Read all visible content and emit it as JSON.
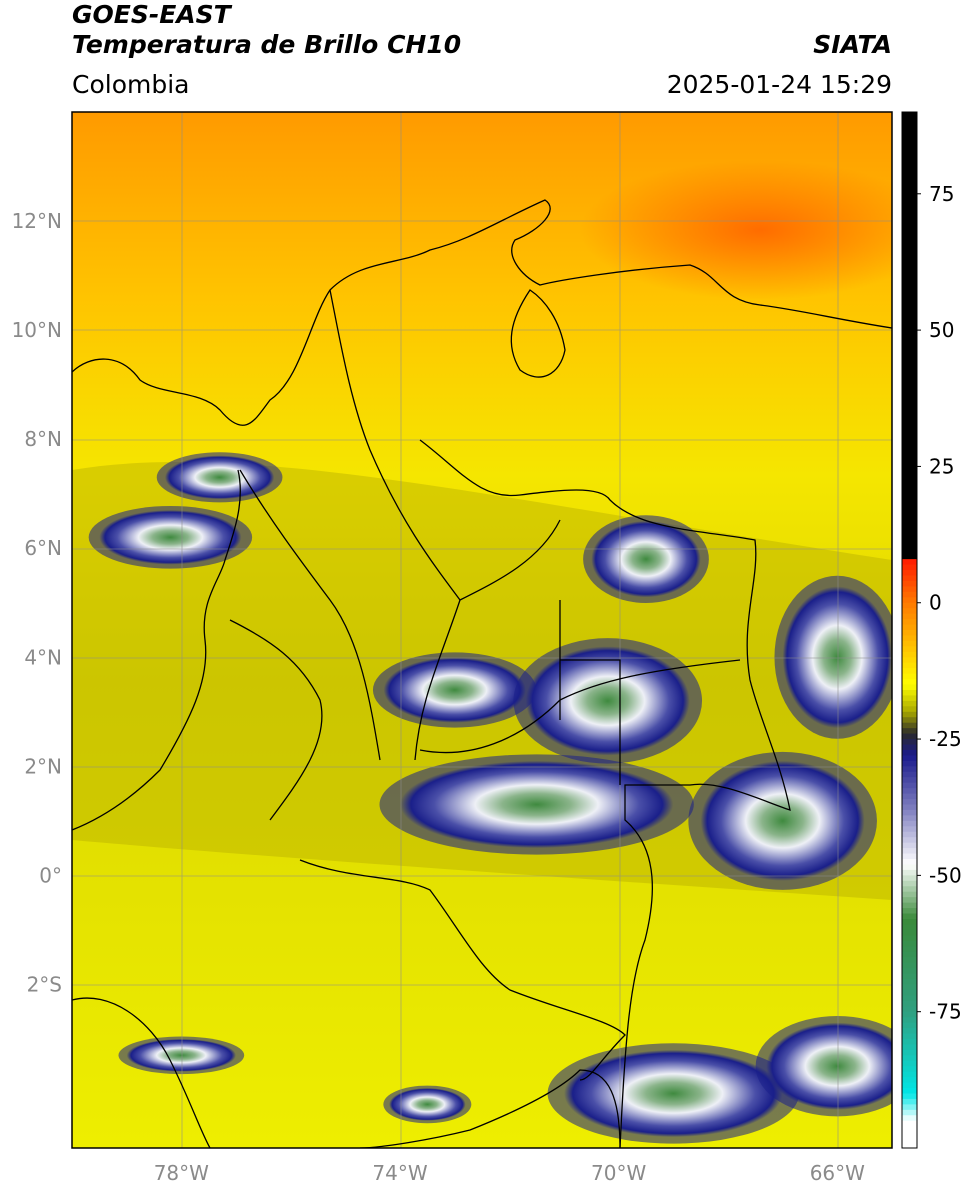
{
  "header": {
    "satellite": "GOES-EAST",
    "product": "Temperatura de Brillo CH10",
    "region": "Colombia",
    "source": "SIATA",
    "datetime": "2025-01-24 15:29"
  },
  "map": {
    "lon_range": [
      -80,
      -65
    ],
    "lat_range": [
      -5,
      14
    ],
    "lat_ticks": [
      {
        "value": 12,
        "label": "12°N"
      },
      {
        "value": 10,
        "label": "10°N"
      },
      {
        "value": 8,
        "label": "8°N"
      },
      {
        "value": 6,
        "label": "6°N"
      },
      {
        "value": 4,
        "label": "4°N"
      },
      {
        "value": 2,
        "label": "2°N"
      },
      {
        "value": 0,
        "label": "0°"
      },
      {
        "value": -2,
        "label": "2°S"
      }
    ],
    "lon_ticks": [
      {
        "value": -78,
        "label": "78°W"
      },
      {
        "value": -74,
        "label": "74°W"
      },
      {
        "value": -70,
        "label": "70°W"
      },
      {
        "value": -66,
        "label": "66°W"
      }
    ],
    "grid": true,
    "background_color": "#e6e600",
    "colors": {
      "warm_orange": "#ff6a00",
      "warm_yellow": "#ffea00",
      "olive": "#b8b400",
      "deep_blue": "#1a1f8a",
      "light_cloud": "#e8ecf4",
      "green_core": "#3f8a3f",
      "border": "#000000",
      "gridline": "#8c8c8c"
    }
  },
  "colorbar": {
    "range": [
      -100,
      90
    ],
    "ticks": [
      {
        "value": 75,
        "label": "75"
      },
      {
        "value": 50,
        "label": "50"
      },
      {
        "value": 25,
        "label": "25"
      },
      {
        "value": 0,
        "label": "0"
      },
      {
        "value": -25,
        "label": "-25"
      },
      {
        "value": -50,
        "label": "-50"
      },
      {
        "value": -75,
        "label": "-75"
      }
    ],
    "stops": [
      {
        "value": 90,
        "color": "#000000"
      },
      {
        "value": 8,
        "color": "#000000"
      },
      {
        "value": 7.9,
        "color": "#ff1a00"
      },
      {
        "value": 0,
        "color": "#ff7a00"
      },
      {
        "value": -8,
        "color": "#ffc000"
      },
      {
        "value": -15,
        "color": "#ffff00"
      },
      {
        "value": -20,
        "color": "#a8a800"
      },
      {
        "value": -24,
        "color": "#2a2a2a"
      },
      {
        "value": -28,
        "color": "#1a1a8c"
      },
      {
        "value": -38,
        "color": "#8080c0"
      },
      {
        "value": -48,
        "color": "#ffffff"
      },
      {
        "value": -58,
        "color": "#3a8a3a"
      },
      {
        "value": -75,
        "color": "#30a080"
      },
      {
        "value": -90,
        "color": "#00e6e6"
      },
      {
        "value": -95,
        "color": "#ffffff"
      },
      {
        "value": -100,
        "color": "#ffffff"
      }
    ]
  },
  "cloud_clusters": [
    {
      "lon": -78.2,
      "lat": 6.2,
      "rx": 1.3,
      "ry": 0.5
    },
    {
      "lon": -77.3,
      "lat": 7.3,
      "rx": 1.0,
      "ry": 0.4
    },
    {
      "lon": -73.0,
      "lat": 3.4,
      "rx": 1.3,
      "ry": 0.6
    },
    {
      "lon": -70.2,
      "lat": 3.2,
      "rx": 1.5,
      "ry": 1.0
    },
    {
      "lon": -69.5,
      "lat": 5.8,
      "rx": 1.0,
      "ry": 0.7
    },
    {
      "lon": -71.5,
      "lat": 1.3,
      "rx": 2.5,
      "ry": 0.8
    },
    {
      "lon": -67.0,
      "lat": 1.0,
      "rx": 1.5,
      "ry": 1.1
    },
    {
      "lon": -66.0,
      "lat": 4.0,
      "rx": 1.0,
      "ry": 1.3
    },
    {
      "lon": -69.0,
      "lat": -4.0,
      "rx": 2.0,
      "ry": 0.8
    },
    {
      "lon": -66.0,
      "lat": -3.5,
      "rx": 1.3,
      "ry": 0.8
    },
    {
      "lon": -73.5,
      "lat": -4.2,
      "rx": 0.7,
      "ry": 0.3
    },
    {
      "lon": -78.0,
      "lat": -3.3,
      "rx": 1.0,
      "ry": 0.3
    }
  ]
}
